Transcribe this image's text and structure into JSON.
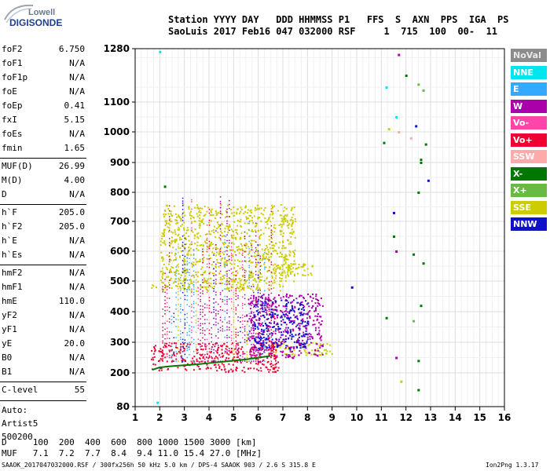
{
  "logo": {
    "line1": "Lowell",
    "line2": "DIGISONDE"
  },
  "header": {
    "row1": "Station YYYY DAY   DDD HHMMSS P1   FFS  S  AXN  PPS  IGA  PS",
    "row2": "SaoLuis 2017 Feb16 047 032000 RSF     1  715  100  00-  11"
  },
  "params": [
    {
      "name": "foF2",
      "value": "6.750"
    },
    {
      "name": "foF1",
      "value": "N/A"
    },
    {
      "name": "foF1p",
      "value": "N/A"
    },
    {
      "name": "foE",
      "value": "N/A"
    },
    {
      "name": "foEp",
      "value": "0.41"
    },
    {
      "name": "fxI",
      "value": "5.15"
    },
    {
      "name": "foEs",
      "value": "N/A"
    },
    {
      "name": "fmin",
      "value": "1.65"
    },
    {
      "name": "MUF(D)",
      "value": "26.99"
    },
    {
      "name": "M(D)",
      "value": "4.00"
    },
    {
      "name": "D",
      "value": "N/A"
    },
    {
      "name": "h`F",
      "value": "205.0"
    },
    {
      "name": "h`F2",
      "value": "205.0"
    },
    {
      "name": "h`E",
      "value": "N/A"
    },
    {
      "name": "h`Es",
      "value": "N/A"
    },
    {
      "name": "hmF2",
      "value": "N/A"
    },
    {
      "name": "hmF1",
      "value": "N/A"
    },
    {
      "name": "hmE",
      "value": "110.0"
    },
    {
      "name": "yF2",
      "value": "N/A"
    },
    {
      "name": "yF1",
      "value": "N/A"
    },
    {
      "name": "yE",
      "value": "20.0"
    },
    {
      "name": "B0",
      "value": "N/A"
    },
    {
      "name": "B1",
      "value": "N/A"
    },
    {
      "name": "C-level",
      "value": "55"
    }
  ],
  "auto": {
    "line1": "Auto:",
    "line2": "Artist5",
    "line3": "500200"
  },
  "legend": [
    {
      "label": "NoVal",
      "color": "#8c8c8c"
    },
    {
      "label": "NNE",
      "color": "#00e5ee"
    },
    {
      "label": "E",
      "color": "#33aaff"
    },
    {
      "label": "W",
      "color": "#aa00aa"
    },
    {
      "label": "Vo-",
      "color": "#ff44aa"
    },
    {
      "label": "Vo+",
      "color": "#ee0033"
    },
    {
      "label": "SSW",
      "color": "#ffaaaa"
    },
    {
      "label": "X-",
      "color": "#007700"
    },
    {
      "label": "X+",
      "color": "#66bb44"
    },
    {
      "label": "SSE",
      "color": "#cccc00"
    },
    {
      "label": "NNW",
      "color": "#1111cc"
    }
  ],
  "muf_table": {
    "d_row": "D     100  200  400  600  800 1000 1500 3000 [km]",
    "muf_row": "MUF   7.1  7.2  7.7  8.4  9.4 11.0 15.4 27.0 [MHz]"
  },
  "footer": {
    "left": "SAAOK_2017047032000.RSF / 300fx256h 50 kHz 5.0 km / DPS-4 SAAOK 903 / 2.6 S 315.8 E",
    "right": "Ion2Png 1.3.17"
  },
  "chart_data": {
    "type": "scatter",
    "x_ticks": [
      1,
      2,
      3,
      4,
      5,
      6,
      7,
      8,
      9,
      10,
      11,
      12,
      13,
      14,
      15,
      16
    ],
    "y_ticks": [
      80,
      200,
      300,
      400,
      500,
      600,
      700,
      800,
      900,
      1000,
      1100,
      1280
    ],
    "xlim": [
      1,
      16
    ],
    "ylim": [
      80,
      1280
    ],
    "grid": true,
    "dense_regions": [
      {
        "name": "SSE",
        "x": [
          1.6,
          7.0
        ],
        "y": [
          470,
          500
        ]
      },
      {
        "name": "SSE",
        "x": [
          2.0,
          7.5
        ],
        "y": [
          500,
          760
        ]
      },
      {
        "name": "SSE",
        "x": [
          6.6,
          8.2
        ],
        "y": [
          520,
          560
        ]
      },
      {
        "name": "SSE",
        "x": [
          6.5,
          9.0
        ],
        "y": [
          260,
          300
        ]
      },
      {
        "name": "Vo+",
        "x": [
          1.6,
          6.8
        ],
        "y": [
          205,
          300
        ]
      },
      {
        "name": "W",
        "x": [
          5.5,
          8.6
        ],
        "y": [
          250,
          460
        ]
      },
      {
        "name": "NNW",
        "x": [
          5.8,
          8.0
        ],
        "y": [
          280,
          440
        ]
      }
    ],
    "trace": {
      "series": "X-",
      "x": [
        1.7,
        2.0,
        2.5,
        3.0,
        3.5,
        4.0,
        4.5,
        5.0,
        5.5,
        6.0,
        6.5
      ],
      "y": [
        210,
        218,
        222,
        225,
        228,
        232,
        236,
        240,
        244,
        250,
        255
      ]
    },
    "scattered_points": [
      {
        "series": "NNE",
        "x": 11.2,
        "y": 1150
      },
      {
        "series": "NNE",
        "x": 11.6,
        "y": 1050
      },
      {
        "series": "W",
        "x": 11.7,
        "y": 1260
      },
      {
        "series": "X-",
        "x": 12.0,
        "y": 1190
      },
      {
        "series": "X+",
        "x": 12.5,
        "y": 1160
      },
      {
        "series": "X+",
        "x": 12.7,
        "y": 1140
      },
      {
        "series": "NNW",
        "x": 12.4,
        "y": 1020
      },
      {
        "series": "X-",
        "x": 11.1,
        "y": 965
      },
      {
        "series": "SSW",
        "x": 11.7,
        "y": 1000
      },
      {
        "series": "X-",
        "x": 12.8,
        "y": 960
      },
      {
        "series": "SSW",
        "x": 12.2,
        "y": 980
      },
      {
        "series": "X-",
        "x": 12.6,
        "y": 910
      },
      {
        "series": "X-",
        "x": 12.6,
        "y": 900
      },
      {
        "series": "NNW",
        "x": 12.9,
        "y": 840
      },
      {
        "series": "X-",
        "x": 12.5,
        "y": 800
      },
      {
        "series": "NNW",
        "x": 11.5,
        "y": 730
      },
      {
        "series": "X-",
        "x": 11.5,
        "y": 650
      },
      {
        "series": "W",
        "x": 11.6,
        "y": 600
      },
      {
        "series": "X-",
        "x": 12.3,
        "y": 590
      },
      {
        "series": "X-",
        "x": 12.7,
        "y": 560
      },
      {
        "series": "NNW",
        "x": 9.8,
        "y": 480
      },
      {
        "series": "X-",
        "x": 11.2,
        "y": 380
      },
      {
        "series": "X-",
        "x": 12.6,
        "y": 420
      },
      {
        "series": "X+",
        "x": 12.3,
        "y": 370
      },
      {
        "series": "W",
        "x": 11.6,
        "y": 250
      },
      {
        "series": "X-",
        "x": 12.5,
        "y": 240
      },
      {
        "series": "SSE",
        "x": 11.8,
        "y": 170
      },
      {
        "series": "X-",
        "x": 12.5,
        "y": 140
      },
      {
        "series": "NNE",
        "x": 1.9,
        "y": 95
      },
      {
        "series": "NNE",
        "x": 2.0,
        "y": 1270
      },
      {
        "series": "X-",
        "x": 2.2,
        "y": 820
      },
      {
        "series": "SSE",
        "x": 11.3,
        "y": 1010
      }
    ]
  }
}
